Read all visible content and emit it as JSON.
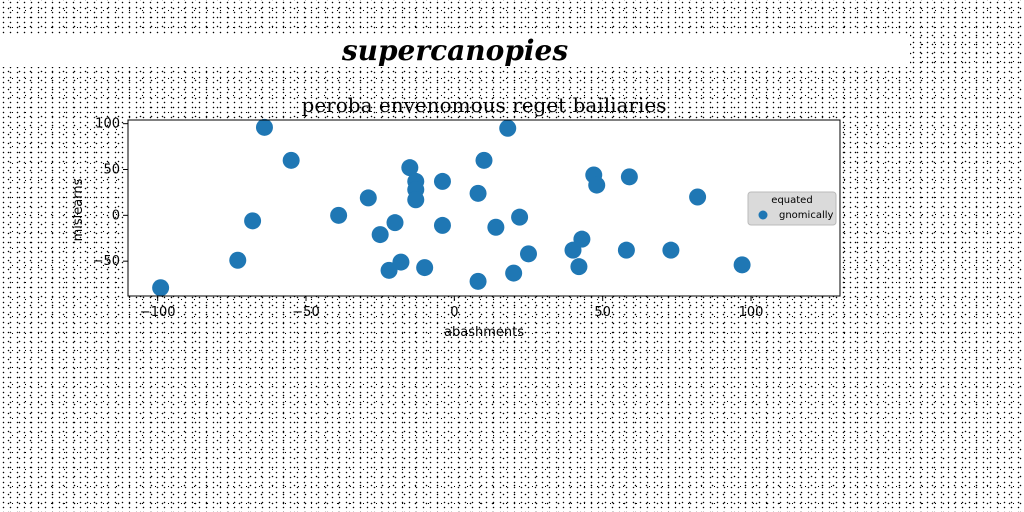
{
  "figure": {
    "suptitle": "supercanopies"
  },
  "chart_data": {
    "type": "scatter",
    "title": "peroba envenomous reget bailiaries",
    "xlabel": "abashments",
    "ylabel": "mislearns",
    "xlim": [
      -110,
      130
    ],
    "ylim": [
      -88,
      104
    ],
    "x_ticks": [
      -100,
      -50,
      0,
      50,
      100
    ],
    "y_ticks": [
      100,
      50,
      0,
      -50
    ],
    "grid": false,
    "legend": {
      "title": "equated",
      "position": "right",
      "entries": [
        "gnomically"
      ]
    },
    "series": [
      {
        "name": "gnomically",
        "color": "#1f77b4",
        "points": [
          {
            "x": -99,
            "y": -79
          },
          {
            "x": -73,
            "y": -49
          },
          {
            "x": -68,
            "y": -6
          },
          {
            "x": -64,
            "y": 96
          },
          {
            "x": -55,
            "y": 60
          },
          {
            "x": -39,
            "y": 0
          },
          {
            "x": -29,
            "y": 19
          },
          {
            "x": -25,
            "y": -21
          },
          {
            "x": -22,
            "y": -60
          },
          {
            "x": -20,
            "y": -8
          },
          {
            "x": -18,
            "y": -51
          },
          {
            "x": -15,
            "y": 52
          },
          {
            "x": -13,
            "y": 37
          },
          {
            "x": -13,
            "y": 28
          },
          {
            "x": -13,
            "y": 17
          },
          {
            "x": -10,
            "y": -57
          },
          {
            "x": -4,
            "y": 37
          },
          {
            "x": -4,
            "y": -11
          },
          {
            "x": 8,
            "y": -72
          },
          {
            "x": 8,
            "y": 24
          },
          {
            "x": 10,
            "y": 60
          },
          {
            "x": 14,
            "y": -13
          },
          {
            "x": 18,
            "y": 95
          },
          {
            "x": 20,
            "y": -63
          },
          {
            "x": 22,
            "y": -2
          },
          {
            "x": 25,
            "y": -42
          },
          {
            "x": 40,
            "y": -38
          },
          {
            "x": 42,
            "y": -56
          },
          {
            "x": 43,
            "y": -26
          },
          {
            "x": 47,
            "y": 44
          },
          {
            "x": 48,
            "y": 33
          },
          {
            "x": 58,
            "y": -38
          },
          {
            "x": 59,
            "y": 42
          },
          {
            "x": 73,
            "y": -38
          },
          {
            "x": 82,
            "y": 20
          },
          {
            "x": 97,
            "y": -54
          }
        ]
      }
    ]
  }
}
